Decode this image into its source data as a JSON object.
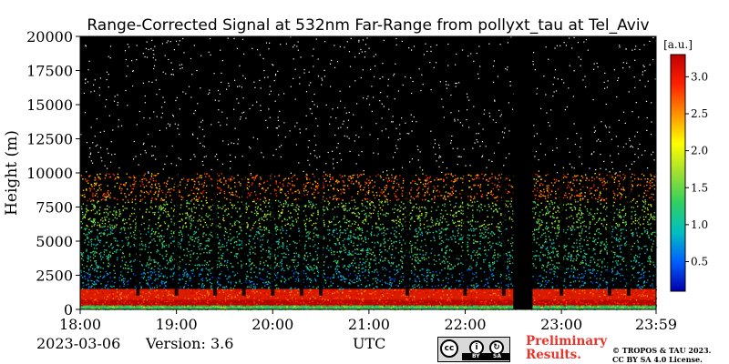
{
  "chart_data": {
    "type": "heatmap",
    "title": "Range-Corrected Signal at 532nm Far-Range from pollyxt_tau at Tel_Aviv",
    "ylabel": "Height (m)",
    "xlabel": "UTC",
    "x_ticks": [
      "18:00",
      "19:00",
      "20:00",
      "21:00",
      "22:00",
      "23:00",
      "23:59"
    ],
    "x_tick_hours": [
      18,
      19,
      20,
      21,
      22,
      23,
      23.9833
    ],
    "xlim": [
      18,
      23.9833
    ],
    "y_ticks": [
      0,
      2500,
      5000,
      7500,
      10000,
      12500,
      15000,
      17500,
      20000
    ],
    "ylim": [
      0,
      20000
    ],
    "colorbar": {
      "unit": "[a.u.]",
      "ticks": [
        "0.5",
        "1.0",
        "1.5",
        "2.0",
        "2.5",
        "3.0"
      ],
      "tick_values": [
        0.5,
        1.0,
        1.5,
        2.0,
        2.5,
        3.0
      ],
      "range": [
        0.1,
        3.3
      ],
      "colormap": [
        "#0000aa",
        "#0060ff",
        "#00c0c0",
        "#30d060",
        "#a0e030",
        "#ffff00",
        "#ff9000",
        "#ff2000",
        "#c00000"
      ]
    },
    "background_color": "#000000",
    "layers": [
      {
        "from_m": 0,
        "to_m": 300,
        "signal": 1.4
      },
      {
        "from_m": 300,
        "to_m": 700,
        "signal": 3.2
      },
      {
        "from_m": 700,
        "to_m": 1500,
        "signal": 2.9
      },
      {
        "from_m": 1500,
        "to_m": 3000,
        "signal": 0.8
      },
      {
        "from_m": 3000,
        "to_m": 6000,
        "signal": 1.2
      },
      {
        "from_m": 6000,
        "to_m": 8000,
        "signal": 1.6
      },
      {
        "from_m": 8000,
        "to_m": 10000,
        "signal": 2.6
      }
    ],
    "data_gaps_utc": [
      [
        22.5,
        22.7
      ]
    ],
    "cloud_columns_utc": [
      18.6,
      19.0,
      19.4,
      19.7,
      20.0,
      20.3,
      20.5,
      21.4,
      22.0,
      22.4,
      23.0,
      23.5,
      23.7
    ]
  },
  "footer": {
    "date": "2023-03-06",
    "version": "Version: 3.6",
    "time_label": "UTC",
    "preliminary": [
      "Preliminary",
      "Results."
    ],
    "copyright": [
      "© TROPOS & TAU 2023.",
      "CC BY SA 4.0 License."
    ],
    "license_badge": {
      "cc": "cc",
      "by": "BY",
      "sa": "SA"
    }
  }
}
